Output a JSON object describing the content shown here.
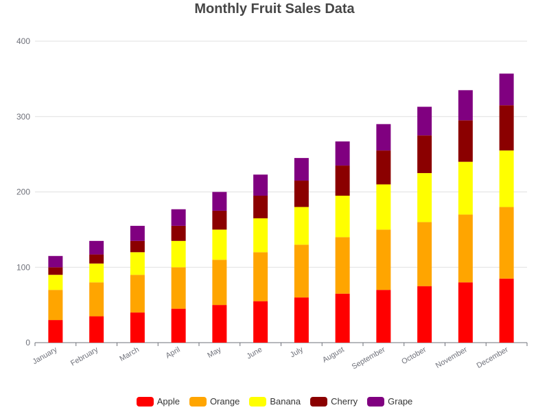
{
  "chart_data": {
    "type": "bar",
    "stacked": true,
    "title": "Monthly Fruit Sales Data",
    "categories": [
      "January",
      "February",
      "March",
      "April",
      "May",
      "June",
      "July",
      "August",
      "September",
      "October",
      "November",
      "December"
    ],
    "series": [
      {
        "name": "Apple",
        "color": "#ff0000",
        "values": [
          30,
          35,
          40,
          45,
          50,
          55,
          60,
          65,
          70,
          75,
          80,
          85
        ]
      },
      {
        "name": "Orange",
        "color": "#ffa500",
        "values": [
          40,
          45,
          50,
          55,
          60,
          65,
          70,
          75,
          80,
          85,
          90,
          95
        ]
      },
      {
        "name": "Banana",
        "color": "#ffff00",
        "values": [
          20,
          25,
          30,
          35,
          40,
          45,
          50,
          55,
          60,
          65,
          70,
          75
        ]
      },
      {
        "name": "Cherry",
        "color": "#8b0000",
        "values": [
          10,
          12,
          15,
          20,
          25,
          30,
          35,
          40,
          45,
          50,
          55,
          60
        ]
      },
      {
        "name": "Grape",
        "color": "#800080",
        "values": [
          15,
          18,
          20,
          22,
          25,
          28,
          30,
          32,
          35,
          38,
          40,
          42
        ]
      }
    ],
    "ylim": [
      0,
      400
    ],
    "yticks": [
      "0",
      "100",
      "200",
      "300",
      "400"
    ],
    "grid": true,
    "legend_position": "bottom"
  }
}
